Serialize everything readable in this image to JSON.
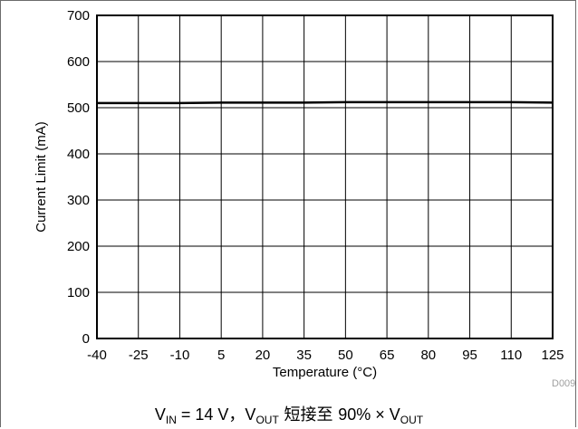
{
  "chart_data": {
    "type": "line",
    "x": [
      -40,
      -25,
      -10,
      5,
      20,
      35,
      50,
      65,
      80,
      95,
      110,
      125
    ],
    "series": [
      {
        "values": [
          510,
          510,
          510,
          511,
          511,
          511,
          512,
          512,
          512,
          512,
          512,
          511
        ]
      }
    ],
    "xlabel": "Temperature (°C)",
    "ylabel": "Current Limit (mA)",
    "xlim": [
      -40,
      125
    ],
    "ylim": [
      0,
      700
    ],
    "xticks": [
      -40,
      -25,
      -10,
      5,
      20,
      35,
      50,
      65,
      80,
      95,
      110,
      125
    ],
    "yticks": [
      0,
      100,
      200,
      300,
      400,
      500,
      600,
      700
    ],
    "grid": true,
    "line_color": "#000000",
    "doc_id": "D009"
  },
  "caption": {
    "v_in_symbol": "V",
    "v_in_sub": "IN",
    "v_in_value": " = 14 V，",
    "v_out_symbol": "V",
    "v_out_sub": "OUT",
    "short_text": " 短接至 ",
    "percent": "90% × ",
    "v_out2_symbol": "V",
    "v_out2_sub": "OUT"
  }
}
